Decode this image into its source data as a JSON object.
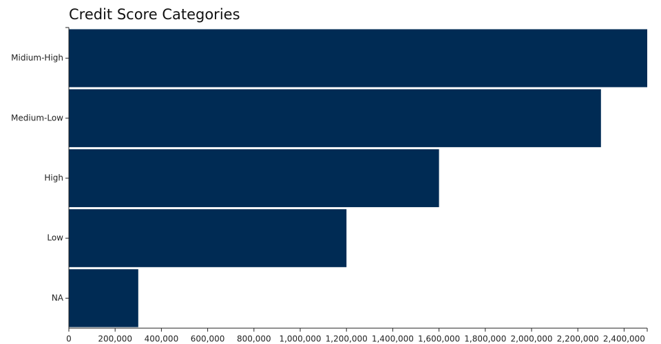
{
  "chart_data": {
    "type": "bar",
    "orientation": "horizontal",
    "title": "Credit Score Categories",
    "categories": [
      "Midium-High",
      "Medium-Low",
      "High",
      "Low",
      "NA"
    ],
    "values": [
      2500000,
      2300000,
      1600000,
      1200000,
      300000
    ],
    "color": "#002b54",
    "xlim": [
      0,
      2500000
    ],
    "xticks": [
      0,
      {
        "value": 200000,
        "label": "200,000"
      },
      {
        "value": 400000,
        "label": "400,000"
      },
      {
        "value": 600000,
        "label": "600,000"
      },
      {
        "value": 800000,
        "label": "800,000"
      },
      {
        "value": 1000000,
        "label": "1,000,000"
      },
      {
        "value": 1200000,
        "label": "1,200,000"
      },
      {
        "value": 1400000,
        "label": "1,400,000"
      },
      {
        "value": 1600000,
        "label": "1,600,000"
      },
      {
        "value": 1800000,
        "label": "1,800,000"
      },
      {
        "value": 2000000,
        "label": "2,000,000"
      },
      {
        "value": 2200000,
        "label": "2,200,000"
      },
      {
        "value": 2400000,
        "label": "2,400,000"
      }
    ],
    "grid": false
  }
}
